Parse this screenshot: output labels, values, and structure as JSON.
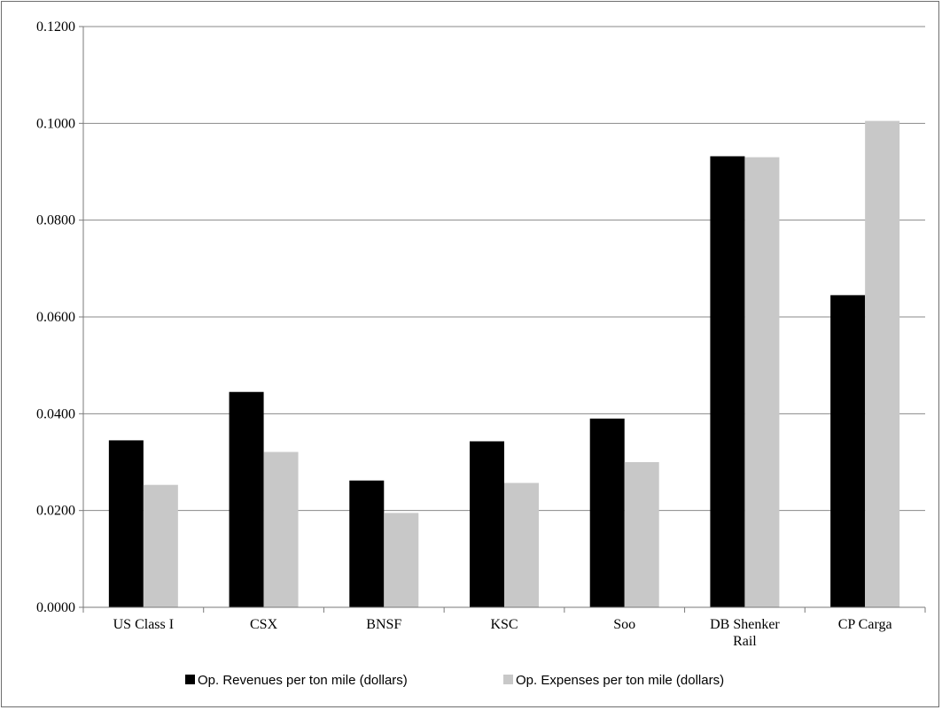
{
  "chart_data": {
    "type": "bar",
    "categories": [
      [
        "US Class I"
      ],
      [
        "CSX"
      ],
      [
        "BNSF"
      ],
      [
        "KSC"
      ],
      [
        "Soo"
      ],
      [
        "DB Shenker",
        "Rail"
      ],
      [
        "CP Carga"
      ]
    ],
    "series": [
      {
        "name": "Op. Revenues per ton mile (dollars)",
        "color": "#000000",
        "values": [
          0.0345,
          0.0445,
          0.0262,
          0.0343,
          0.039,
          0.0932,
          0.0645
        ]
      },
      {
        "name": "Op. Expenses per ton mile (dollars)",
        "color": "#c8c8c8",
        "values": [
          0.0253,
          0.0321,
          0.0195,
          0.0257,
          0.03,
          0.093,
          0.1005
        ]
      }
    ],
    "yticks": [
      "0.0000",
      "0.0200",
      "0.0400",
      "0.0600",
      "0.0800",
      "0.1000",
      "0.1200"
    ],
    "ylim": [
      0,
      0.12
    ],
    "grid": true,
    "legend": "bottom"
  }
}
